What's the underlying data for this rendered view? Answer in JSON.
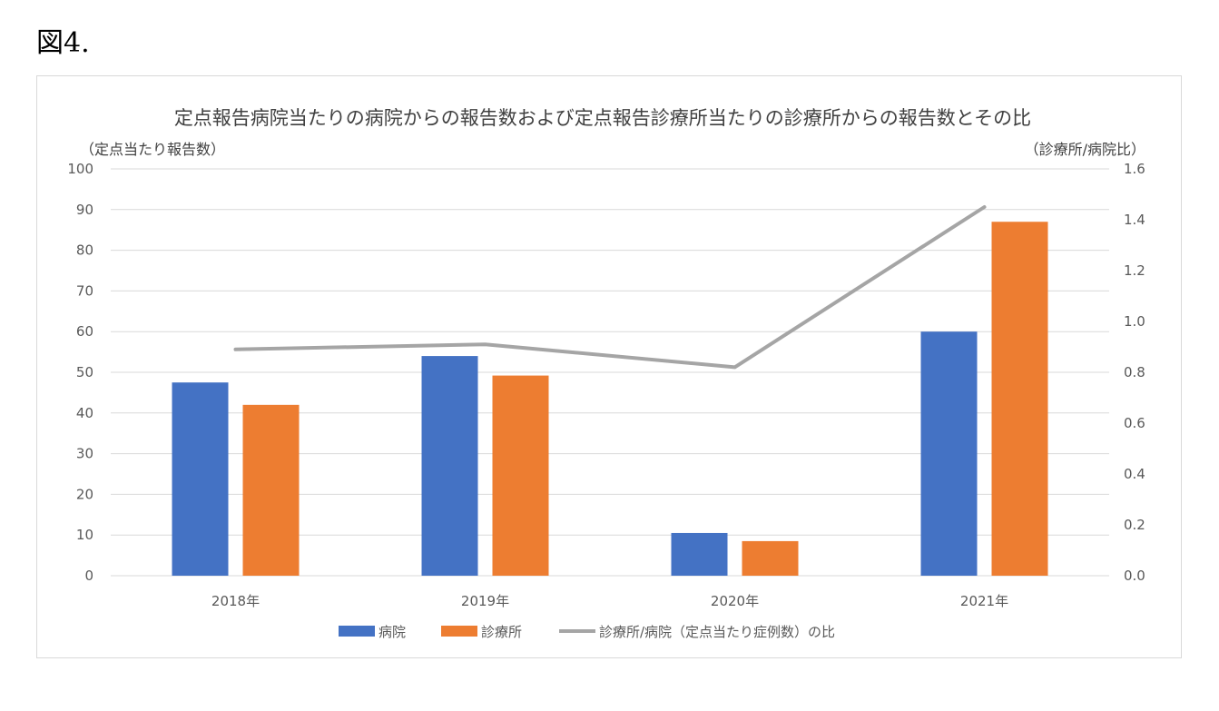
{
  "figure_label": "図4.",
  "colors": {
    "hospital": "#4472C4",
    "clinic": "#ED7D31",
    "ratio": "#A5A5A5",
    "grid": "#D9D9D9"
  },
  "chart_data": {
    "type": "bar",
    "title": "定点報告病院当たりの病院からの報告数および定点報告診療所当たりの診療所からの報告数とその比",
    "ylabel_left": "（定点当たり報告数）",
    "ylabel_right": "（診療所/病院比）",
    "categories": [
      "2018年",
      "2019年",
      "2020年",
      "2021年"
    ],
    "ylim_left": [
      0,
      100
    ],
    "ylim_right": [
      0,
      1.6
    ],
    "yticks_left": [
      "0",
      "10",
      "20",
      "30",
      "40",
      "50",
      "60",
      "70",
      "80",
      "90",
      "100"
    ],
    "yticks_right": [
      "0.0",
      "0.2",
      "0.4",
      "0.6",
      "0.8",
      "1.0",
      "1.2",
      "1.4",
      "1.6"
    ],
    "grid": true,
    "legend_position": "bottom",
    "series": [
      {
        "name": "病院",
        "type": "bar",
        "axis": "left",
        "values": [
          47.5,
          54.0,
          10.5,
          60.0
        ]
      },
      {
        "name": "診療所",
        "type": "bar",
        "axis": "left",
        "values": [
          42.0,
          49.2,
          8.5,
          87.0
        ]
      },
      {
        "name": "診療所/病院（定点当たり症例数）の比",
        "type": "line",
        "axis": "right",
        "values": [
          0.89,
          0.91,
          0.82,
          1.45
        ]
      }
    ]
  }
}
